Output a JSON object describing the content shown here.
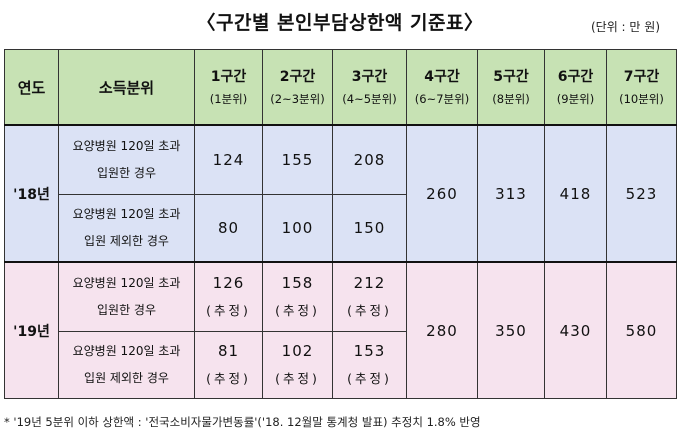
{
  "title": "〈구간별 본인부담상한액 기준표〉",
  "unit": "(단위 : 만 원)",
  "header": {
    "year": "연도",
    "income": "소득분위",
    "tiers": [
      {
        "name": "1구간",
        "range": "(1분위)"
      },
      {
        "name": "2구간",
        "range": "(2~3분위)"
      },
      {
        "name": "3구간",
        "range": "(4~5분위)"
      },
      {
        "name": "4구간",
        "range": "(6~7분위)"
      },
      {
        "name": "5구간",
        "range": "(8분위)"
      },
      {
        "name": "6구간",
        "range": "(9분위)"
      },
      {
        "name": "7구간",
        "range": "(10분위)"
      }
    ]
  },
  "rows": {
    "y2018": {
      "year": "'18년",
      "over": {
        "line1": "요양병원 120일 초과",
        "line2": "입원한 경우",
        "values": [
          "124",
          "155",
          "208"
        ]
      },
      "excl": {
        "line1": "요양병원 120일 초과",
        "line2": "입원 제외한 경우",
        "values": [
          "80",
          "100",
          "150"
        ]
      },
      "shared": [
        "260",
        "313",
        "418",
        "523"
      ]
    },
    "y2019": {
      "year": "'19년",
      "over": {
        "line1": "요양병원 120일 초과",
        "line2": "입원한 경우",
        "values": [
          "126",
          "158",
          "212"
        ]
      },
      "excl": {
        "line1": "요양병원 120일 초과",
        "line2": "입원 제외한 경우",
        "values": [
          "81",
          "102",
          "153"
        ]
      },
      "estimate": "(추정)",
      "shared": [
        "280",
        "350",
        "430",
        "580"
      ]
    }
  },
  "note": "* '19년 5분위 이하 상한액 : '전국소비자물가변동률'('18. 12월말 통계청 발표) 추정치 1.8% 반영",
  "colors": {
    "header_bg": "#c7e2b4",
    "row2018_bg": "#dbe2f5",
    "row2019_bg": "#f6e3ee"
  }
}
